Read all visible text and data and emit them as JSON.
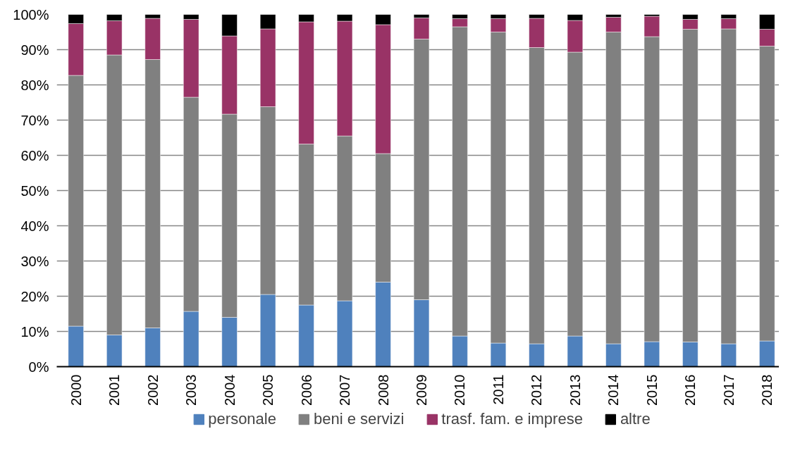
{
  "chart_data": {
    "type": "bar",
    "stacked": true,
    "categories": [
      "2000",
      "2001",
      "2002",
      "2003",
      "2004",
      "2005",
      "2006",
      "2007",
      "2008",
      "2009",
      "2010",
      "2011",
      "2012",
      "2013",
      "2014",
      "2015",
      "2016",
      "2017",
      "2018"
    ],
    "series": [
      {
        "name": "personale",
        "color": "#4f81bd",
        "values": [
          11.5,
          9.0,
          11.0,
          15.7,
          14.0,
          20.5,
          17.5,
          18.7,
          24.0,
          19.0,
          8.7,
          6.7,
          6.5,
          8.7,
          6.5,
          7.1,
          7.0,
          6.5,
          7.3
        ]
      },
      {
        "name": "beni e servizi",
        "color": "#808080",
        "values": [
          71.2,
          79.5,
          76.2,
          60.8,
          57.7,
          53.3,
          45.7,
          46.8,
          36.5,
          74.0,
          87.8,
          88.3,
          84.1,
          80.6,
          88.5,
          86.6,
          88.8,
          89.4,
          83.7
        ]
      },
      {
        "name": "trasf. fam. e imprese",
        "color": "#993366",
        "values": [
          14.7,
          9.7,
          11.7,
          22.1,
          22.2,
          22.1,
          34.7,
          32.6,
          36.6,
          6.0,
          2.3,
          3.8,
          8.3,
          9.0,
          4.2,
          5.8,
          2.8,
          2.9,
          4.8
        ]
      },
      {
        "name": "altre",
        "color": "#000000",
        "values": [
          2.6,
          1.8,
          1.1,
          1.4,
          6.1,
          4.1,
          2.1,
          1.9,
          2.9,
          1.0,
          1.2,
          1.2,
          1.1,
          1.7,
          0.8,
          0.5,
          1.4,
          1.2,
          4.2
        ]
      }
    ],
    "ylim": [
      0,
      100
    ],
    "yticks": [
      {
        "value": 0,
        "label": "0%"
      },
      {
        "value": 10,
        "label": "10%"
      },
      {
        "value": 20,
        "label": "20%"
      },
      {
        "value": 30,
        "label": "30%"
      },
      {
        "value": 40,
        "label": "40%"
      },
      {
        "value": 50,
        "label": "50%"
      },
      {
        "value": 60,
        "label": "60%"
      },
      {
        "value": 70,
        "label": "70%"
      },
      {
        "value": 80,
        "label": "80%"
      },
      {
        "value": 90,
        "label": "90%"
      },
      {
        "value": 100,
        "label": "100%"
      }
    ],
    "grid": "y",
    "legend": "bottom"
  }
}
